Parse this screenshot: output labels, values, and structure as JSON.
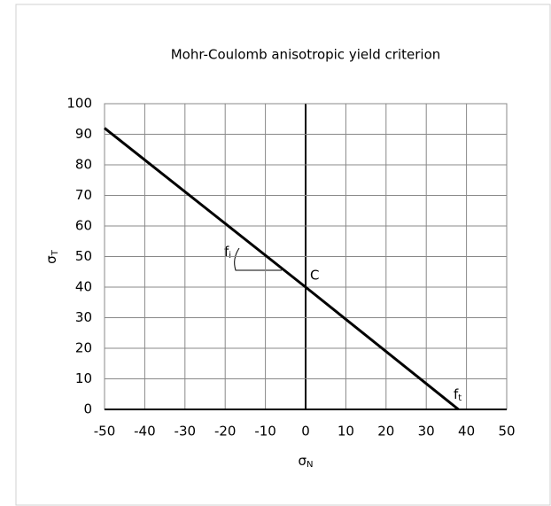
{
  "chart_data": {
    "type": "line",
    "title": "Mohr-Coulomb anisotropic yield criterion",
    "xlabel": {
      "base": "σ",
      "sub": "N"
    },
    "ylabel": {
      "base": "σ",
      "sub": "T"
    },
    "x": [
      -50,
      0,
      38
    ],
    "series": [
      {
        "color": "#000000",
        "values": [
          92,
          40,
          0
        ]
      }
    ],
    "xlim": [
      -50,
      50
    ],
    "xticks": [
      -50,
      -40,
      -30,
      -20,
      -10,
      0,
      10,
      20,
      30,
      40,
      50
    ],
    "ylim": [
      0,
      100
    ],
    "yticks": [
      0,
      10,
      20,
      30,
      40,
      50,
      60,
      70,
      80,
      90,
      100
    ],
    "grid": true,
    "annotations": [
      {
        "base": "f",
        "sub": "i"
      },
      {
        "base": "C"
      },
      {
        "base": "f",
        "sub": "t"
      }
    ]
  }
}
